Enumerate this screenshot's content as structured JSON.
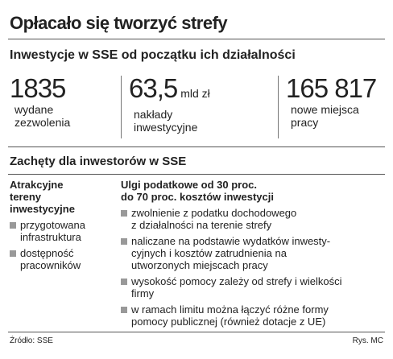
{
  "title": "Opłacało się tworzyć strefy",
  "section1": {
    "title": "Inwestycje w SSE od początku ich działalności",
    "stats": [
      {
        "value": "1835",
        "label": [
          "wydane",
          "zezwolenia"
        ]
      },
      {
        "value": "63,5",
        "unit": "mld zł",
        "label": [
          "nakłady",
          "inwestycyjne"
        ]
      },
      {
        "value": "165 817",
        "label": [
          "nowe miejsca",
          "pracy"
        ]
      }
    ]
  },
  "section2": {
    "title": "Zachęty dla inwestorów w SSE",
    "left": {
      "heading": [
        "Atrakcyjne",
        "tereny",
        "inwestycyjne"
      ],
      "items": [
        [
          "przygotowana",
          "infrastruktura"
        ],
        [
          "dostępność",
          "pracowników"
        ]
      ]
    },
    "right": {
      "heading": [
        "Ulgi podatkowe od 30 proc.",
        "do 70 proc. kosztów inwestycji"
      ],
      "items": [
        [
          "zwolnienie z podatku dochodowego",
          "z działalności na terenie strefy"
        ],
        [
          "naliczane na podstawie wydatków inwesty-",
          "cyjnych i kosztów zatrudnienia na",
          "utworzonych miejscach pracy"
        ],
        [
          "wysokość pomocy zależy od strefy i wielkości",
          "firmy"
        ],
        [
          "w ramach limitu można łączyć różne formy",
          "pomocy publicznej (również dotacje z UE)"
        ]
      ]
    }
  },
  "footer": {
    "source": "Źródło: SSE",
    "credit": "Rys. MC"
  }
}
